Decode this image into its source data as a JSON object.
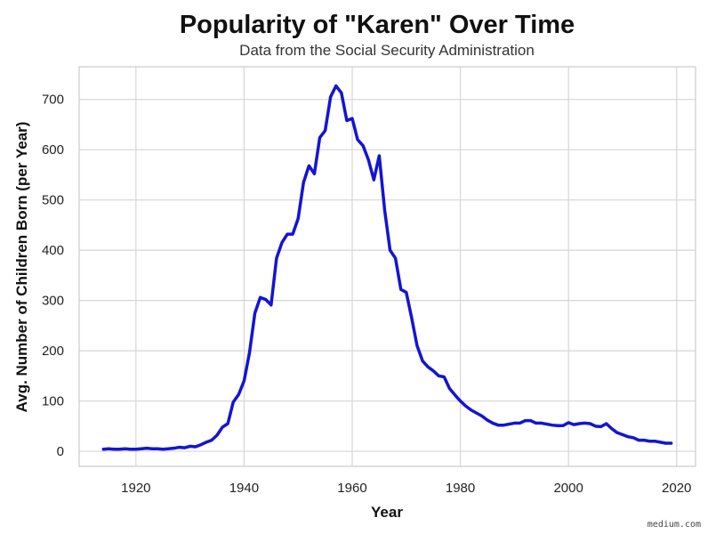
{
  "chart_data": {
    "type": "line",
    "title": "Popularity of \"Karen\" Over Time",
    "subtitle": "Data from the Social Security Administration",
    "xlabel": "Year",
    "ylabel": "Avg. Number of Children Born (per Year)",
    "xlim": [
      1909.5,
      2023.5
    ],
    "ylim": [
      -30,
      765
    ],
    "xticks": [
      1920,
      1940,
      1960,
      1980,
      2000,
      2020
    ],
    "yticks": [
      0,
      100,
      200,
      300,
      400,
      500,
      600,
      700
    ],
    "grid": true,
    "line_color": "#1414d4",
    "series": [
      {
        "x": [
          1914,
          1915,
          1916,
          1917,
          1918,
          1919,
          1920,
          1921,
          1922,
          1923,
          1924,
          1925,
          1926,
          1927,
          1928,
          1929,
          1930,
          1931,
          1932,
          1933,
          1934,
          1935,
          1936,
          1937,
          1938,
          1939,
          1940,
          1941,
          1942,
          1943,
          1944,
          1945,
          1946,
          1947,
          1948,
          1949,
          1950,
          1951,
          1952,
          1953,
          1954,
          1955,
          1956,
          1957,
          1958,
          1959,
          1960,
          1961,
          1962,
          1963,
          1964,
          1965,
          1966,
          1967,
          1968,
          1969,
          1970,
          1971,
          1972,
          1973,
          1974,
          1975,
          1976,
          1977,
          1978,
          1979,
          1980,
          1981,
          1982,
          1983,
          1984,
          1985,
          1986,
          1987,
          1988,
          1989,
          1990,
          1991,
          1992,
          1993,
          1994,
          1995,
          1996,
          1997,
          1998,
          1999,
          2000,
          2001,
          2002,
          2003,
          2004,
          2005,
          2006,
          2007,
          2008,
          2009,
          2010,
          2011,
          2012,
          2013,
          2014,
          2015,
          2016,
          2017,
          2018,
          2019
        ],
        "y": [
          4,
          5,
          4,
          4,
          5,
          4,
          4,
          5,
          6,
          5,
          5,
          4,
          5,
          6,
          8,
          7,
          10,
          9,
          13,
          18,
          22,
          32,
          48,
          55,
          98,
          113,
          140,
          196,
          275,
          306,
          302,
          291,
          384,
          415,
          432,
          432,
          463,
          535,
          568,
          552,
          624,
          638,
          705,
          727,
          713,
          658,
          662,
          620,
          608,
          580,
          540,
          588,
          480,
          400,
          384,
          322,
          316,
          265,
          210,
          180,
          168,
          160,
          150,
          148,
          125,
          112,
          100,
          90,
          82,
          76,
          70,
          62,
          56,
          52,
          52,
          54,
          56,
          56,
          61,
          61,
          56,
          56,
          54,
          52,
          51,
          51,
          57,
          53,
          55,
          56,
          55,
          50,
          49,
          55,
          45,
          37,
          33,
          29,
          27,
          22,
          22,
          20,
          20,
          18,
          16,
          16
        ]
      }
    ]
  },
  "watermark": "medium.com"
}
